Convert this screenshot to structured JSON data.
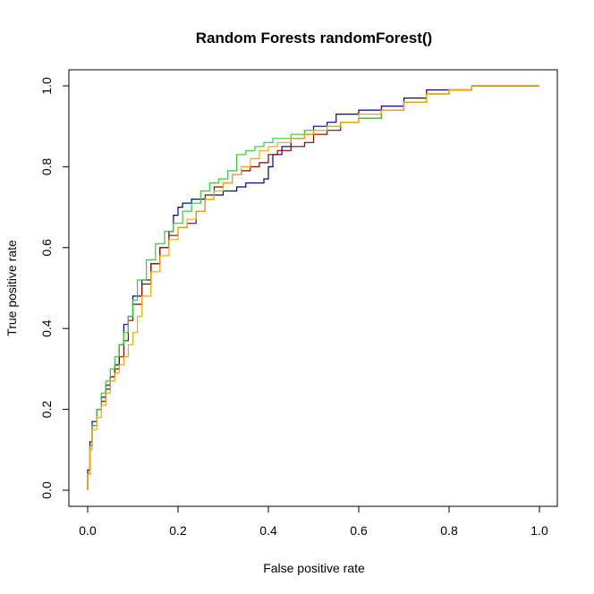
{
  "chart_data": {
    "type": "line",
    "title": "Random Forests randomForest()",
    "xlabel": "False positive rate",
    "ylabel": "True positive rate",
    "xlim": [
      0,
      1
    ],
    "ylim": [
      0,
      1
    ],
    "xticks": [
      "0.0",
      "0.2",
      "0.4",
      "0.6",
      "0.8",
      "1.0"
    ],
    "yticks": [
      "0.0",
      "0.2",
      "0.4",
      "0.6",
      "0.8",
      "1.0"
    ],
    "grid": false,
    "legend": "none",
    "series": [
      {
        "color": "#00008B",
        "x": [
          0.0,
          0.005,
          0.01,
          0.02,
          0.03,
          0.04,
          0.05,
          0.06,
          0.07,
          0.08,
          0.09,
          0.1,
          0.12,
          0.14,
          0.16,
          0.18,
          0.19,
          0.2,
          0.21,
          0.23,
          0.25,
          0.28,
          0.3,
          0.33,
          0.35,
          0.37,
          0.39,
          0.4,
          0.41,
          0.43,
          0.45,
          0.48,
          0.5,
          0.53,
          0.55,
          0.58,
          0.6,
          0.65,
          0.7,
          0.75,
          0.8,
          0.85,
          0.88,
          0.9,
          0.92,
          1.0
        ],
        "y": [
          0.0,
          0.05,
          0.12,
          0.17,
          0.2,
          0.23,
          0.26,
          0.28,
          0.31,
          0.36,
          0.41,
          0.43,
          0.48,
          0.52,
          0.56,
          0.6,
          0.64,
          0.68,
          0.7,
          0.71,
          0.72,
          0.72,
          0.73,
          0.74,
          0.75,
          0.76,
          0.76,
          0.77,
          0.8,
          0.83,
          0.85,
          0.87,
          0.88,
          0.9,
          0.91,
          0.93,
          0.93,
          0.94,
          0.95,
          0.97,
          0.99,
          0.99,
          1.0,
          1.0,
          1.0,
          1.0
        ]
      },
      {
        "color": "#8B0000",
        "x": [
          0.0,
          0.005,
          0.01,
          0.02,
          0.03,
          0.04,
          0.05,
          0.06,
          0.07,
          0.08,
          0.09,
          0.1,
          0.12,
          0.14,
          0.16,
          0.18,
          0.2,
          0.22,
          0.24,
          0.26,
          0.28,
          0.3,
          0.32,
          0.34,
          0.36,
          0.38,
          0.4,
          0.42,
          0.45,
          0.48,
          0.5,
          0.53,
          0.56,
          0.6,
          0.65,
          0.7,
          0.75,
          0.8,
          0.85,
          0.88,
          0.9,
          0.93,
          1.0
        ],
        "y": [
          0.0,
          0.04,
          0.11,
          0.16,
          0.2,
          0.22,
          0.25,
          0.28,
          0.3,
          0.33,
          0.37,
          0.42,
          0.46,
          0.51,
          0.56,
          0.6,
          0.63,
          0.65,
          0.66,
          0.69,
          0.73,
          0.75,
          0.76,
          0.78,
          0.79,
          0.8,
          0.81,
          0.83,
          0.84,
          0.85,
          0.86,
          0.88,
          0.89,
          0.91,
          0.92,
          0.94,
          0.96,
          0.98,
          0.99,
          1.0,
          1.0,
          1.0,
          1.0
        ]
      },
      {
        "color": "#32CD32",
        "x": [
          0.0,
          0.005,
          0.01,
          0.02,
          0.03,
          0.04,
          0.05,
          0.06,
          0.07,
          0.08,
          0.09,
          0.1,
          0.11,
          0.13,
          0.15,
          0.17,
          0.19,
          0.21,
          0.23,
          0.25,
          0.27,
          0.29,
          0.31,
          0.33,
          0.35,
          0.37,
          0.39,
          0.41,
          0.43,
          0.45,
          0.48,
          0.5,
          0.53,
          0.56,
          0.6,
          0.65,
          0.7,
          0.75,
          0.8,
          0.85,
          0.9,
          0.93,
          1.0
        ],
        "y": [
          0.0,
          0.04,
          0.11,
          0.16,
          0.2,
          0.24,
          0.27,
          0.3,
          0.33,
          0.36,
          0.39,
          0.43,
          0.47,
          0.52,
          0.57,
          0.61,
          0.64,
          0.66,
          0.69,
          0.71,
          0.74,
          0.76,
          0.77,
          0.79,
          0.83,
          0.84,
          0.85,
          0.86,
          0.87,
          0.87,
          0.88,
          0.89,
          0.89,
          0.9,
          0.91,
          0.92,
          0.94,
          0.96,
          0.98,
          0.99,
          1.0,
          1.0,
          1.0
        ]
      },
      {
        "color": "#FFA500",
        "x": [
          0.0,
          0.005,
          0.01,
          0.02,
          0.03,
          0.04,
          0.05,
          0.06,
          0.07,
          0.08,
          0.09,
          0.1,
          0.11,
          0.12,
          0.14,
          0.16,
          0.18,
          0.2,
          0.22,
          0.24,
          0.26,
          0.28,
          0.3,
          0.32,
          0.34,
          0.36,
          0.38,
          0.4,
          0.42,
          0.45,
          0.48,
          0.5,
          0.53,
          0.56,
          0.6,
          0.65,
          0.7,
          0.75,
          0.8,
          0.85,
          0.88,
          0.92,
          1.0
        ],
        "y": [
          0.0,
          0.04,
          0.1,
          0.15,
          0.18,
          0.21,
          0.24,
          0.27,
          0.29,
          0.31,
          0.33,
          0.36,
          0.39,
          0.43,
          0.48,
          0.54,
          0.58,
          0.62,
          0.65,
          0.67,
          0.69,
          0.72,
          0.74,
          0.76,
          0.78,
          0.8,
          0.82,
          0.84,
          0.85,
          0.86,
          0.87,
          0.88,
          0.89,
          0.9,
          0.91,
          0.93,
          0.94,
          0.96,
          0.98,
          0.99,
          1.0,
          1.0,
          1.0
        ]
      }
    ]
  }
}
